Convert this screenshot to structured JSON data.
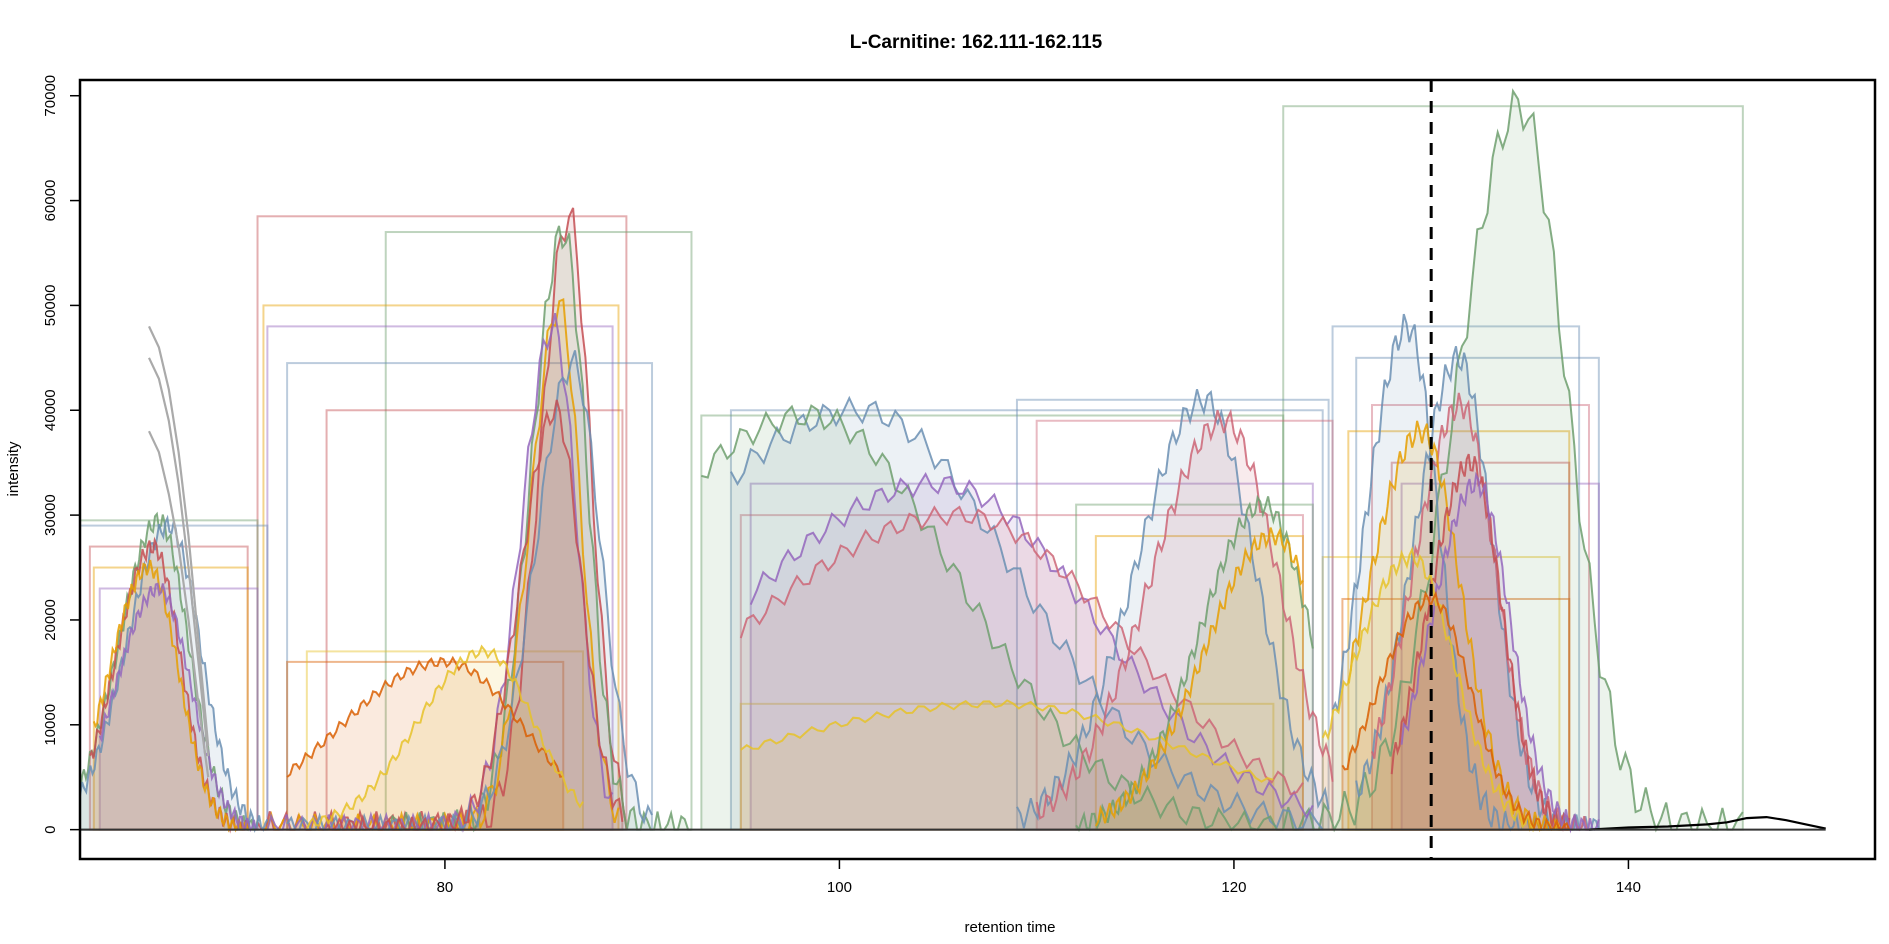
{
  "chart_data": {
    "type": "area",
    "title": "L-Carnitine: 162.111-162.115",
    "xlabel": "retention time",
    "ylabel": "intensity",
    "xlim": [
      61.5,
      152.5
    ],
    "ylim": [
      -2800,
      71500
    ],
    "x_ticks": [
      80,
      100,
      120,
      140
    ],
    "y_ticks": [
      0,
      10000,
      20000,
      30000,
      40000,
      50000,
      60000,
      70000
    ],
    "grid": false,
    "legend": "none",
    "marker_line": {
      "x": 130,
      "style": "dashed",
      "color": "#000000"
    },
    "peaks": [
      {
        "color": "#6f9f6f",
        "start": 122.5,
        "end": 145.8,
        "apex": 134.5,
        "height": 69000,
        "sigma": 2.4
      },
      {
        "color": "#6b8fb3",
        "start": 125.0,
        "end": 137.5,
        "apex": 128.8,
        "height": 48000,
        "sigma": 1.6
      },
      {
        "color": "#6b8fb3",
        "start": 126.2,
        "end": 138.5,
        "apex": 131.4,
        "height": 45000,
        "sigma": 1.7
      },
      {
        "color": "#cc6677",
        "start": 127.0,
        "end": 138.0,
        "apex": 131.5,
        "height": 40500,
        "sigma": 1.8
      },
      {
        "color": "#e69f00",
        "start": 125.8,
        "end": 137.0,
        "apex": 129.5,
        "height": 38000,
        "sigma": 2.0
      },
      {
        "color": "#c44e52",
        "start": 128.0,
        "end": 137.0,
        "apex": 132.0,
        "height": 35000,
        "sigma": 1.6
      },
      {
        "color": "#9467bd",
        "start": 128.5,
        "end": 138.5,
        "apex": 132.3,
        "height": 33000,
        "sigma": 1.7
      },
      {
        "color": "#e6c229",
        "start": 124.5,
        "end": 136.5,
        "apex": 129.0,
        "height": 26000,
        "sigma": 2.2
      },
      {
        "color": "#d95f02",
        "start": 125.5,
        "end": 137.0,
        "apex": 130.0,
        "height": 22000,
        "sigma": 2.0
      },
      {
        "color": "#c44e52",
        "start": 70.5,
        "end": 89.2,
        "apex": 86.3,
        "height": 58500,
        "sigma": 1.1
      },
      {
        "color": "#6f9f6f",
        "start": 77.0,
        "end": 92.5,
        "apex": 86.0,
        "height": 57000,
        "sigma": 1.2
      },
      {
        "color": "#e69f00",
        "start": 70.8,
        "end": 88.8,
        "apex": 85.8,
        "height": 50000,
        "sigma": 1.1
      },
      {
        "color": "#9467bd",
        "start": 71.0,
        "end": 88.5,
        "apex": 85.5,
        "height": 48000,
        "sigma": 1.2
      },
      {
        "color": "#6b8fb3",
        "start": 72.0,
        "end": 90.5,
        "apex": 86.5,
        "height": 44500,
        "sigma": 1.4
      },
      {
        "color": "#c44e52",
        "start": 74.0,
        "end": 89.0,
        "apex": 85.6,
        "height": 40000,
        "sigma": 1.3
      },
      {
        "color": "#6b8fb3",
        "start": 94.5,
        "end": 124.5,
        "apex": 101.0,
        "height": 40000,
        "sigma": 8.0
      },
      {
        "color": "#6f9f6f",
        "start": 93.0,
        "end": 122.5,
        "apex": 98.5,
        "height": 39500,
        "sigma": 7.5
      },
      {
        "color": "#9467bd",
        "start": 95.5,
        "end": 124.0,
        "apex": 105.0,
        "height": 33000,
        "sigma": 8.0
      },
      {
        "color": "#cc6677",
        "start": 95.0,
        "end": 123.5,
        "apex": 106.0,
        "height": 30000,
        "sigma": 8.5
      },
      {
        "color": "#e6c229",
        "start": 95.0,
        "end": 122.0,
        "apex": 108.0,
        "height": 12000,
        "sigma": 10.0
      },
      {
        "color": "#6b8fb3",
        "start": 109.0,
        "end": 124.8,
        "apex": 118.5,
        "height": 41000,
        "sigma": 2.6
      },
      {
        "color": "#cc6677",
        "start": 110.0,
        "end": 125.0,
        "apex": 119.5,
        "height": 39000,
        "sigma": 2.8
      },
      {
        "color": "#6f9f6f",
        "start": 112.0,
        "end": 124.0,
        "apex": 121.5,
        "height": 31000,
        "sigma": 2.4
      },
      {
        "color": "#e69f00",
        "start": 113.0,
        "end": 123.5,
        "apex": 122.0,
        "height": 28000,
        "sigma": 2.6
      },
      {
        "color": "#6f9f6f",
        "start": 61.5,
        "end": 70.5,
        "apex": 65.5,
        "height": 29500,
        "sigma": 1.5
      },
      {
        "color": "#6b8fb3",
        "start": 61.5,
        "end": 71.0,
        "apex": 66.0,
        "height": 29000,
        "sigma": 1.6
      },
      {
        "color": "#c44e52",
        "start": 62.0,
        "end": 70.0,
        "apex": 65.2,
        "height": 27000,
        "sigma": 1.4
      },
      {
        "color": "#e69f00",
        "start": 62.2,
        "end": 70.0,
        "apex": 65.0,
        "height": 25000,
        "sigma": 1.5
      },
      {
        "color": "#9467bd",
        "start": 62.5,
        "end": 70.5,
        "apex": 65.5,
        "height": 23000,
        "sigma": 1.6
      },
      {
        "color": "#d95f02",
        "start": 72.0,
        "end": 86.0,
        "apex": 80.0,
        "height": 16000,
        "sigma": 4.0
      },
      {
        "color": "#e6c229",
        "start": 73.0,
        "end": 87.0,
        "apex": 82.0,
        "height": 17000,
        "sigma": 2.5
      }
    ],
    "background_traces": [
      {
        "color": "#aaaaaa",
        "x": [
          65.0,
          65.5,
          66.0,
          66.5,
          67.0,
          67.5,
          68.0
        ],
        "y": [
          48000,
          46000,
          42000,
          36000,
          28000,
          18000,
          8000
        ]
      },
      {
        "color": "#aaaaaa",
        "x": [
          65.0,
          65.5,
          66.0,
          66.5,
          67.0,
          67.5,
          68.0
        ],
        "y": [
          45000,
          43000,
          39000,
          33000,
          25000,
          16000,
          7000
        ]
      },
      {
        "color": "#aaaaaa",
        "x": [
          65.0,
          65.5,
          66.0,
          66.5,
          67.0,
          67.5,
          68.0
        ],
        "y": [
          38000,
          36000,
          32000,
          27000,
          20000,
          12000,
          5000
        ]
      },
      {
        "color": "#000000",
        "x": [
          138.0,
          140.0,
          142.0,
          144.0,
          145.0,
          146.0,
          147.0,
          148.0,
          149.0,
          150.0
        ],
        "y": [
          0,
          200,
          300,
          500,
          700,
          1100,
          1200,
          900,
          500,
          100
        ]
      }
    ]
  }
}
